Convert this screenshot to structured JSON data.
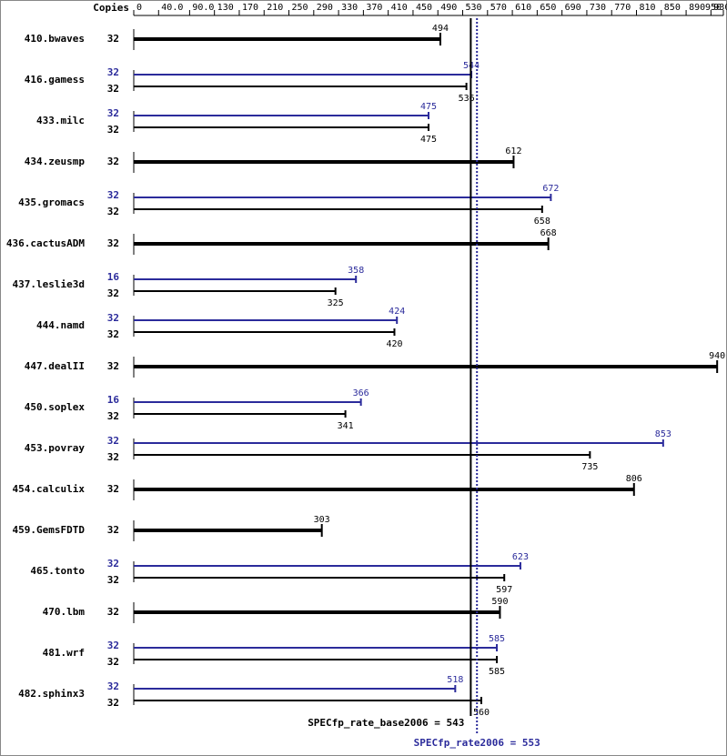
{
  "chart_data": {
    "type": "bar",
    "copies_title": "Copies",
    "categories": [
      "410.bwaves",
      "416.gamess",
      "433.milc",
      "434.zeusmp",
      "435.gromacs",
      "436.cactusADM",
      "437.leslie3d",
      "444.namd",
      "447.dealII",
      "450.soplex",
      "453.povray",
      "454.calculix",
      "459.GemsFDTD",
      "465.tonto",
      "470.lbm",
      "481.wrf",
      "482.sphinx3"
    ],
    "series": [
      {
        "color": "#2b2b9b",
        "copies": [
          null,
          32,
          32,
          null,
          32,
          null,
          16,
          32,
          null,
          16,
          32,
          null,
          null,
          32,
          null,
          32,
          32
        ],
        "values": [
          null,
          544,
          475,
          null,
          672,
          null,
          358,
          424,
          null,
          366,
          853,
          null,
          null,
          623,
          null,
          585,
          518
        ]
      },
      {
        "color": "#000000",
        "copies": [
          32,
          32,
          32,
          32,
          32,
          32,
          32,
          32,
          32,
          32,
          32,
          32,
          32,
          32,
          32,
          32,
          32
        ],
        "values": [
          494,
          536,
          475,
          612,
          658,
          668,
          325,
          420,
          940,
          341,
          735,
          806,
          303,
          597,
          590,
          585,
          560
        ]
      }
    ],
    "xlim": [
      0,
      950
    ],
    "xticks": [
      0,
      {
        "value": 40,
        "label": "40.0"
      },
      {
        "value": 90,
        "label": "90.0"
      },
      130,
      170,
      210,
      250,
      290,
      330,
      370,
      410,
      450,
      490,
      530,
      570,
      610,
      650,
      690,
      730,
      770,
      810,
      850,
      890,
      930,
      950
    ],
    "reference_lines": [
      {
        "value": 543,
        "label": "SPECfp_rate_base2006 = 543",
        "color": "#000000"
      },
      {
        "value": 553,
        "label": "SPECfp_rate2006 = 553",
        "color": "#2b2b9b"
      }
    ]
  }
}
